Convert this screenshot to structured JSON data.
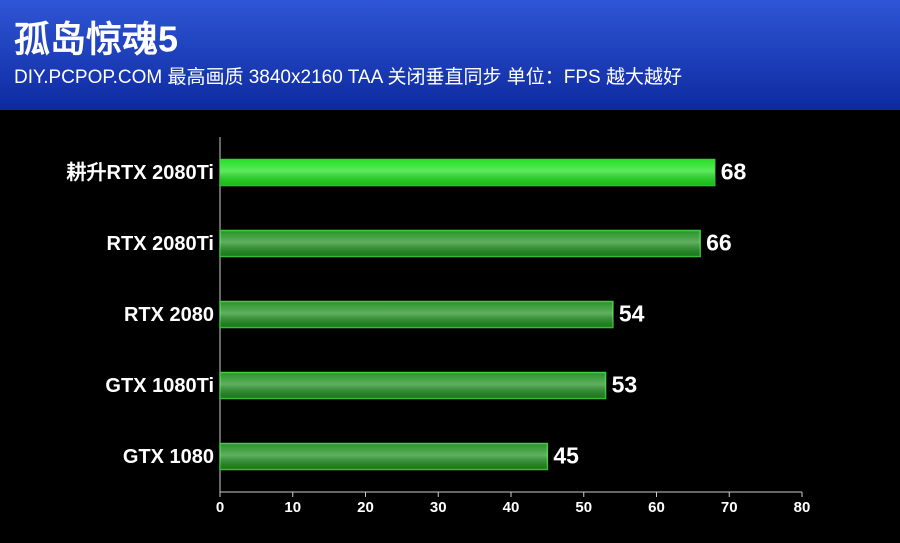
{
  "chart_data": {
    "type": "bar",
    "orientation": "horizontal",
    "title": "孤岛惊魂5",
    "subtitle": "DIY.PCPOP.COM  最高画质 3840x2160 TAA 关闭垂直同步 单位：FPS 越大越好",
    "categories": [
      "耕升RTX 2080Ti",
      "RTX 2080Ti",
      "RTX 2080",
      "GTX 1080Ti",
      "GTX 1080"
    ],
    "values": [
      68,
      66,
      54,
      53,
      45
    ],
    "colors": [
      "#19e019",
      "#1c8e1c",
      "#1c8e1c",
      "#1c8e1c",
      "#1c8e1c"
    ],
    "xlim": [
      0,
      80
    ],
    "xticks": [
      0,
      10,
      20,
      30,
      40,
      50,
      60,
      70,
      80
    ]
  }
}
